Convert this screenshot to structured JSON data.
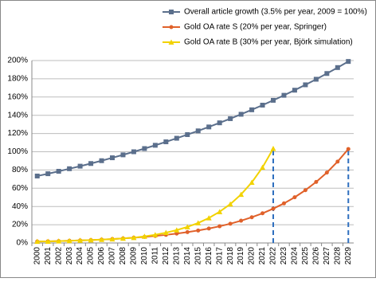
{
  "chart_data": {
    "type": "line",
    "categories": [
      "2000",
      "2001",
      "2002",
      "2003",
      "2004",
      "2005",
      "2006",
      "2007",
      "2008",
      "2009",
      "2010",
      "2011",
      "2012",
      "2013",
      "2014",
      "2015",
      "2016",
      "2017",
      "2018",
      "2019",
      "2020",
      "2021",
      "2022",
      "2023",
      "2024",
      "2025",
      "2026",
      "2027",
      "2028",
      "2029"
    ],
    "series": [
      {
        "name": "Overall article growth (3.5% per year, 2009 = 100%)",
        "color": "#5b6f8c",
        "marker": "square",
        "values": [
          73.4,
          75.9,
          78.6,
          81.4,
          84.2,
          87.1,
          90.2,
          93.4,
          96.6,
          100,
          103.5,
          107.1,
          110.9,
          114.8,
          118.8,
          122.9,
          127.2,
          131.7,
          136.3,
          141.1,
          146.0,
          151.1,
          156.4,
          161.9,
          167.5,
          173.4,
          179.5,
          185.8,
          192.3,
          199.0
        ]
      },
      {
        "name": "Gold OA rate S (20% per year, Springer)",
        "color": "#e0612a",
        "marker": "circle",
        "values": [
          1.6,
          1.8,
          2.1,
          2.4,
          2.8,
          3.2,
          3.7,
          4.3,
          5.0,
          5.8,
          6.7,
          7.7,
          8.9,
          10.3,
          11.9,
          13.7,
          15.8,
          18.3,
          21.1,
          24.4,
          28.2,
          32.5,
          37.6,
          43.4,
          50.1,
          57.9,
          66.9,
          77.2,
          89.2,
          103.0
        ]
      },
      {
        "name": "Gold OA rate B (30% per year, Björk simulation)",
        "color": "#f2d200",
        "marker": "triangle",
        "values": [
          1.6,
          1.8,
          2.1,
          2.4,
          2.8,
          3.2,
          3.7,
          4.3,
          5.0,
          5.8,
          7.2,
          9.0,
          11.3,
          14.1,
          17.6,
          21.9,
          27.4,
          34.2,
          42.6,
          53.2,
          66.4,
          82.9,
          103.5,
          null,
          null,
          null,
          null,
          null,
          null,
          null
        ]
      }
    ],
    "ylim": [
      0,
      200
    ],
    "yticks": [
      {
        "value": 0,
        "label": "0%"
      },
      {
        "value": 20,
        "label": "20%"
      },
      {
        "value": 40,
        "label": "40%"
      },
      {
        "value": 60,
        "label": "60%"
      },
      {
        "value": 80,
        "label": "80%"
      },
      {
        "value": 100,
        "label": "100%"
      },
      {
        "value": 120,
        "label": "120%"
      },
      {
        "value": 140,
        "label": "140%"
      },
      {
        "value": 160,
        "label": "160%"
      },
      {
        "value": 180,
        "label": "180%"
      },
      {
        "value": 200,
        "label": "200%"
      }
    ],
    "grid": true,
    "legend": "top-right",
    "guides": [
      {
        "series": 1,
        "index": 9,
        "to": 0,
        "to_index": 9
      },
      {
        "series": 2,
        "index": 22
      },
      {
        "series": 1,
        "index": 29
      }
    ]
  }
}
